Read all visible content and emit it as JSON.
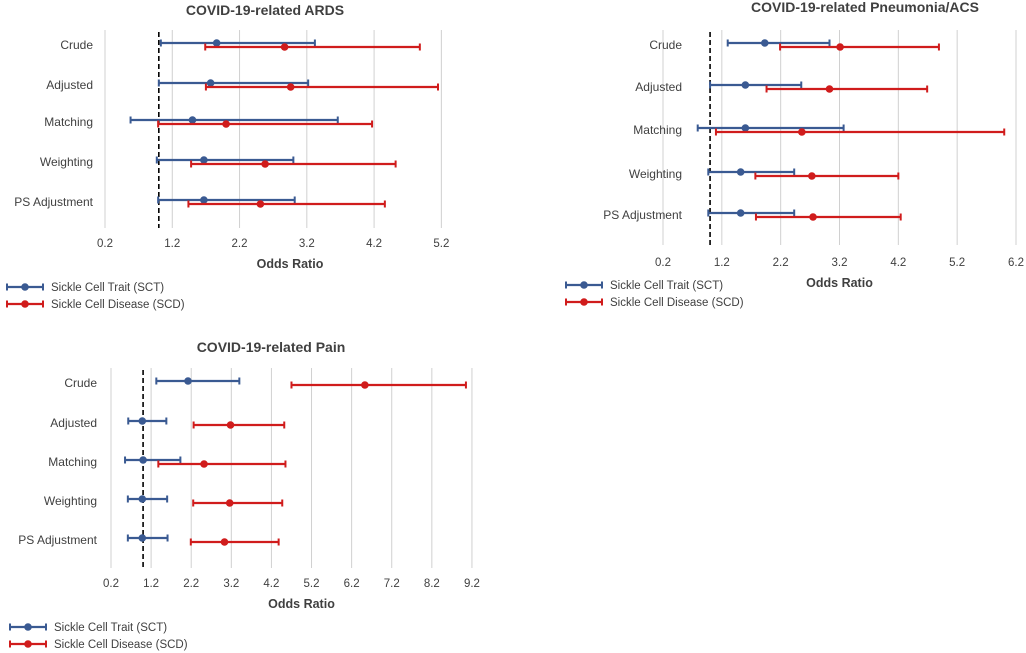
{
  "colors": {
    "sct": "#3a5a92",
    "scd": "#d01c1c",
    "grid": "#d0d0d0",
    "text": "#404040",
    "ref": "#000000"
  },
  "chart_data": [
    {
      "type": "forest",
      "title": "COVID-19-related ARDS",
      "xlabel": "Odds Ratio",
      "xlim": [
        0.2,
        5.7
      ],
      "ticks": [
        "0.2",
        "1.2",
        "2.2",
        "3.2",
        "4.2",
        "5.2"
      ],
      "reference_line": 1.0,
      "categories": [
        "Crude",
        "Adjusted",
        "Matching",
        "Weighting",
        "PS Adjustment"
      ],
      "series": [
        {
          "name": "Sickle Cell Trait (SCT)",
          "key": "sct",
          "or": [
            1.86,
            1.77,
            1.5,
            1.67,
            1.67
          ],
          "lower": [
            1.03,
            1.0,
            0.58,
            0.97,
            0.99
          ],
          "upper": [
            3.32,
            3.22,
            3.66,
            3.0,
            3.02
          ]
        },
        {
          "name": "Sickle Cell Disease (SCD)",
          "key": "scd",
          "or": [
            2.87,
            2.96,
            2.0,
            2.58,
            2.51
          ],
          "lower": [
            1.69,
            1.7,
            0.99,
            1.48,
            1.44
          ],
          "upper": [
            4.88,
            5.15,
            4.17,
            4.52,
            4.36
          ]
        }
      ]
    },
    {
      "type": "forest",
      "title": "COVID-19-related Pneumonia/ACS",
      "xlabel": "Odds Ratio",
      "xlim": [
        0.2,
        6.2
      ],
      "ticks": [
        "0.2",
        "1.2",
        "2.2",
        "3.2",
        "4.2",
        "5.2",
        "6.2"
      ],
      "reference_line": 1.0,
      "categories": [
        "Crude",
        "Adjusted",
        "Matching",
        "Weighting",
        "PS Adjustment"
      ],
      "series": [
        {
          "name": "Sickle Cell Trait (SCT)",
          "key": "sct",
          "or": [
            1.93,
            1.6,
            1.6,
            1.52,
            1.52
          ],
          "lower": [
            1.3,
            1.0,
            0.79,
            0.97,
            0.97
          ],
          "upper": [
            3.03,
            2.55,
            3.27,
            2.43,
            2.43
          ]
        },
        {
          "name": "Sickle Cell Disease (SCD)",
          "key": "scd",
          "or": [
            3.21,
            3.03,
            2.56,
            2.73,
            2.75
          ],
          "lower": [
            2.19,
            1.96,
            1.1,
            1.77,
            1.78
          ],
          "upper": [
            4.89,
            4.69,
            6.0,
            4.2,
            4.24
          ]
        }
      ]
    },
    {
      "type": "forest",
      "title": "COVID-19-related Pain",
      "xlabel": "Odds Ratio",
      "xlim": [
        0.2,
        9.7
      ],
      "ticks": [
        "0.2",
        "1.2",
        "2.2",
        "3.2",
        "4.2",
        "5.2",
        "6.2",
        "7.2",
        "8.2",
        "9.2"
      ],
      "reference_line": 1.0,
      "categories": [
        "Crude",
        "Adjusted",
        "Matching",
        "Weighting",
        "PS Adjustment"
      ],
      "series": [
        {
          "name": "Sickle Cell Trait (SCT)",
          "key": "sct",
          "or": [
            2.12,
            0.98,
            1.0,
            0.98,
            0.98
          ],
          "lower": [
            1.33,
            0.63,
            0.55,
            0.62,
            0.62
          ],
          "upper": [
            3.4,
            1.58,
            1.93,
            1.6,
            1.61
          ]
        },
        {
          "name": "Sickle Cell Disease (SCD)",
          "key": "scd",
          "or": [
            6.53,
            3.18,
            2.52,
            3.16,
            3.03
          ],
          "lower": [
            4.7,
            2.26,
            1.38,
            2.25,
            2.19
          ],
          "upper": [
            9.05,
            4.52,
            4.55,
            4.47,
            4.38
          ]
        }
      ]
    }
  ]
}
